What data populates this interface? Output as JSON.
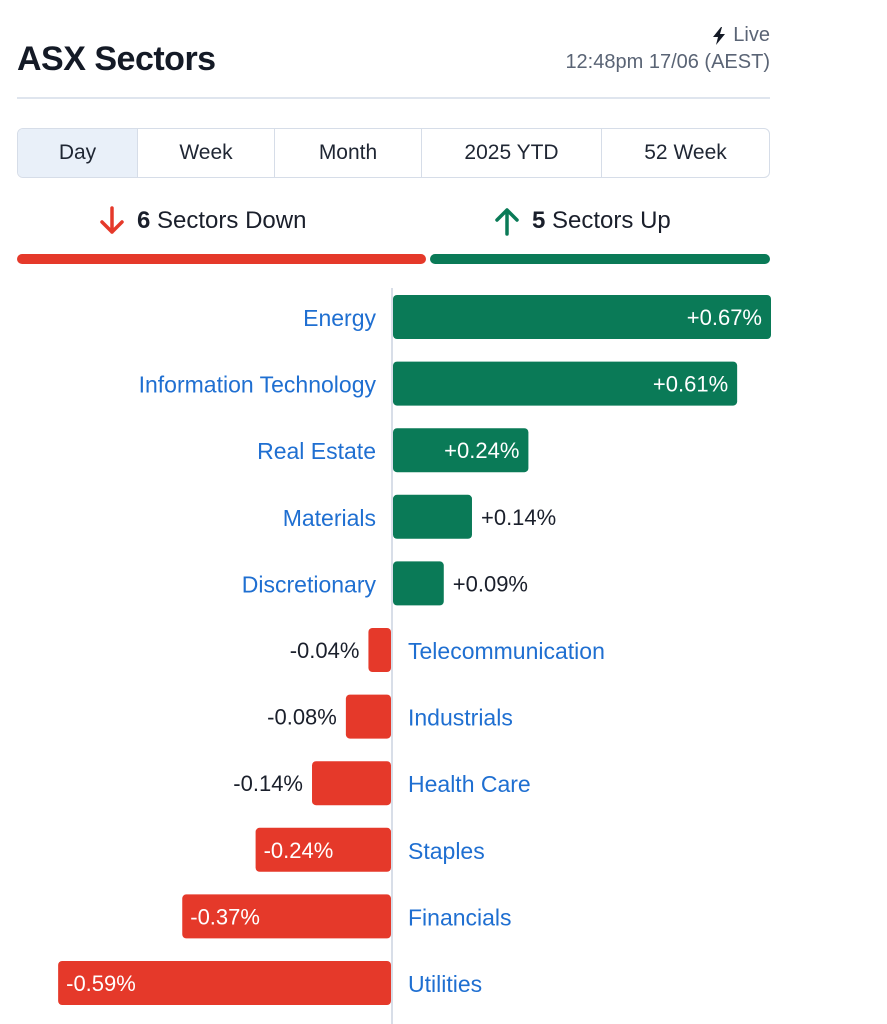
{
  "header": {
    "title": "ASX Sectors",
    "live_label": "Live",
    "timestamp": "12:48pm 17/06 (AEST)"
  },
  "tabs": [
    {
      "label": "Day",
      "active": true
    },
    {
      "label": "Week",
      "active": false
    },
    {
      "label": "Month",
      "active": false
    },
    {
      "label": "2025 YTD",
      "active": false
    },
    {
      "label": "52 Week",
      "active": false
    }
  ],
  "summary": {
    "down_count": "6",
    "down_label": "Sectors Down",
    "up_count": "5",
    "up_label": "Sectors Up"
  },
  "colors": {
    "up": "#0a7a57",
    "down": "#e5392a",
    "link": "#1f6fd1"
  },
  "chart_data": {
    "type": "bar",
    "orientation": "horizontal",
    "unit": "%",
    "categories": [
      "Energy",
      "Information Technology",
      "Real Estate",
      "Materials",
      "Discretionary",
      "Telecommunication",
      "Industrials",
      "Health Care",
      "Staples",
      "Financials",
      "Utilities"
    ],
    "values": [
      0.67,
      0.61,
      0.24,
      0.14,
      0.09,
      -0.04,
      -0.08,
      -0.14,
      -0.24,
      -0.37,
      -0.59
    ],
    "labels": [
      "+0.67%",
      "+0.61%",
      "+0.24%",
      "+0.14%",
      "+0.09%",
      "-0.04%",
      "-0.08%",
      "-0.14%",
      "-0.24%",
      "-0.37%",
      "-0.59%"
    ],
    "xlim": [
      -0.59,
      0.67
    ]
  }
}
